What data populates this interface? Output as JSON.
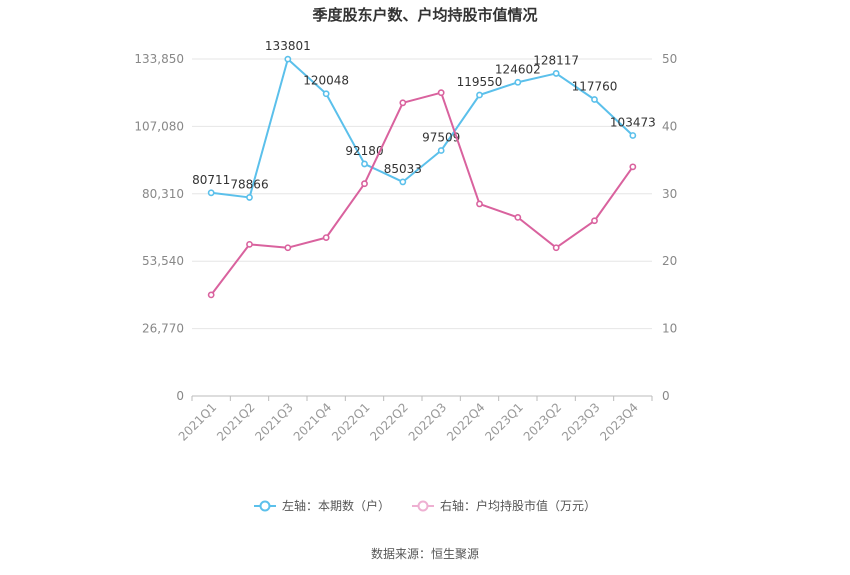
{
  "chart_data": {
    "type": "line",
    "title": "季度股东户数、户均持股市值情况",
    "categories": [
      "2021Q1",
      "2021Q2",
      "2021Q3",
      "2021Q4",
      "2022Q1",
      "2022Q2",
      "2022Q3",
      "2022Q4",
      "2023Q1",
      "2023Q2",
      "2023Q3",
      "2023Q4"
    ],
    "series": [
      {
        "name": "左轴：本期数（户）",
        "axis": "left",
        "color": "#5bc0eb",
        "values": [
          80711,
          78866,
          133801,
          120048,
          92180,
          85033,
          97509,
          119550,
          124602,
          128117,
          117760,
          103473
        ],
        "data_labels": [
          "80711",
          "78866",
          "133801",
          "120048",
          "92180",
          "85033",
          "97509",
          "119550",
          "124602",
          "128117",
          "117760",
          "103473"
        ]
      },
      {
        "name": "右轴：户均持股市值（万元）",
        "axis": "right",
        "color": "#d9629e",
        "values": [
          15.0,
          22.5,
          22.0,
          23.5,
          31.5,
          43.5,
          45.0,
          28.5,
          26.5,
          22.0,
          26.0,
          34.0
        ]
      }
    ],
    "left_axis": {
      "ylim": [
        0,
        133850
      ],
      "ticks": [
        0,
        26770,
        53540,
        80310,
        107080,
        133850
      ],
      "tick_labels": [
        "0",
        "26,770",
        "53,540",
        "80,310",
        "107,080",
        "133,850"
      ]
    },
    "right_axis": {
      "ylim": [
        0,
        50
      ],
      "ticks": [
        0,
        10,
        20,
        30,
        40,
        50
      ],
      "tick_labels": [
        "0",
        "10",
        "20",
        "30",
        "40",
        "50"
      ]
    },
    "grid": true,
    "legend_position": "bottom-center"
  },
  "source": "数据来源：恒生聚源"
}
